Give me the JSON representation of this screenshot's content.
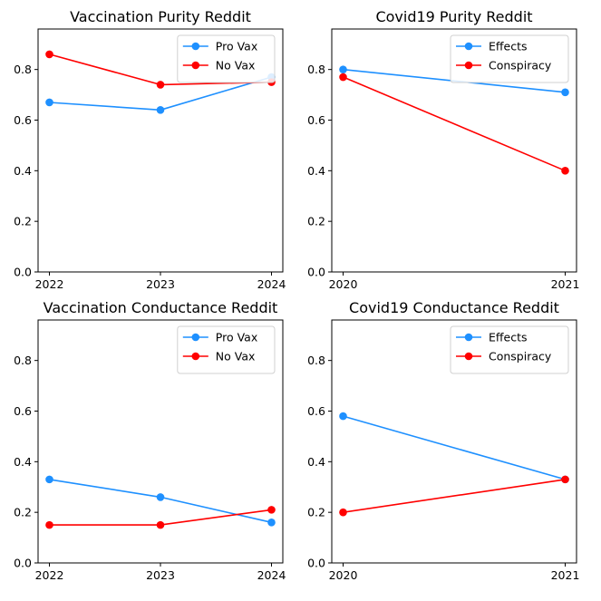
{
  "chart_data": [
    {
      "type": "line",
      "title": "Vaccination Purity Reddit",
      "xlabel": "",
      "ylabel": "",
      "categories": [
        "2022",
        "2023",
        "2024"
      ],
      "ylim": [
        0,
        0.96
      ],
      "yticks": [
        "0.0",
        "0.2",
        "0.4",
        "0.6",
        "0.8"
      ],
      "legend_position": "top-right",
      "grid": false,
      "series": [
        {
          "name": "Pro Vax",
          "color": "#1e90ff",
          "values": [
            0.67,
            0.64,
            0.77
          ]
        },
        {
          "name": "No Vax",
          "color": "#ff0000",
          "values": [
            0.86,
            0.74,
            0.75
          ]
        }
      ]
    },
    {
      "type": "line",
      "title": "Covid19 Purity Reddit",
      "xlabel": "",
      "ylabel": "",
      "categories": [
        "2020",
        "2021"
      ],
      "ylim": [
        0,
        0.96
      ],
      "yticks": [
        "0.0",
        "0.2",
        "0.4",
        "0.6",
        "0.8"
      ],
      "legend_position": "top-right",
      "grid": false,
      "series": [
        {
          "name": "Effects",
          "color": "#1e90ff",
          "values": [
            0.8,
            0.71
          ]
        },
        {
          "name": "Conspiracy",
          "color": "#ff0000",
          "values": [
            0.77,
            0.4
          ]
        }
      ]
    },
    {
      "type": "line",
      "title": "Vaccination Conductance Reddit",
      "xlabel": "",
      "ylabel": "",
      "categories": [
        "2022",
        "2023",
        "2024"
      ],
      "ylim": [
        0,
        0.96
      ],
      "yticks": [
        "0.0",
        "0.2",
        "0.4",
        "0.6",
        "0.8"
      ],
      "legend_position": "top-right",
      "grid": false,
      "series": [
        {
          "name": "Pro Vax",
          "color": "#1e90ff",
          "values": [
            0.33,
            0.26,
            0.16
          ]
        },
        {
          "name": "No Vax",
          "color": "#ff0000",
          "values": [
            0.15,
            0.15,
            0.21
          ]
        }
      ]
    },
    {
      "type": "line",
      "title": "Covid19 Conductance Reddit",
      "xlabel": "",
      "ylabel": "",
      "categories": [
        "2020",
        "2021"
      ],
      "ylim": [
        0,
        0.96
      ],
      "yticks": [
        "0.0",
        "0.2",
        "0.4",
        "0.6",
        "0.8"
      ],
      "legend_position": "top-right",
      "grid": false,
      "series": [
        {
          "name": "Effects",
          "color": "#1e90ff",
          "values": [
            0.58,
            0.33
          ]
        },
        {
          "name": "Conspiracy",
          "color": "#ff0000",
          "values": [
            0.2,
            0.33
          ]
        }
      ]
    }
  ]
}
